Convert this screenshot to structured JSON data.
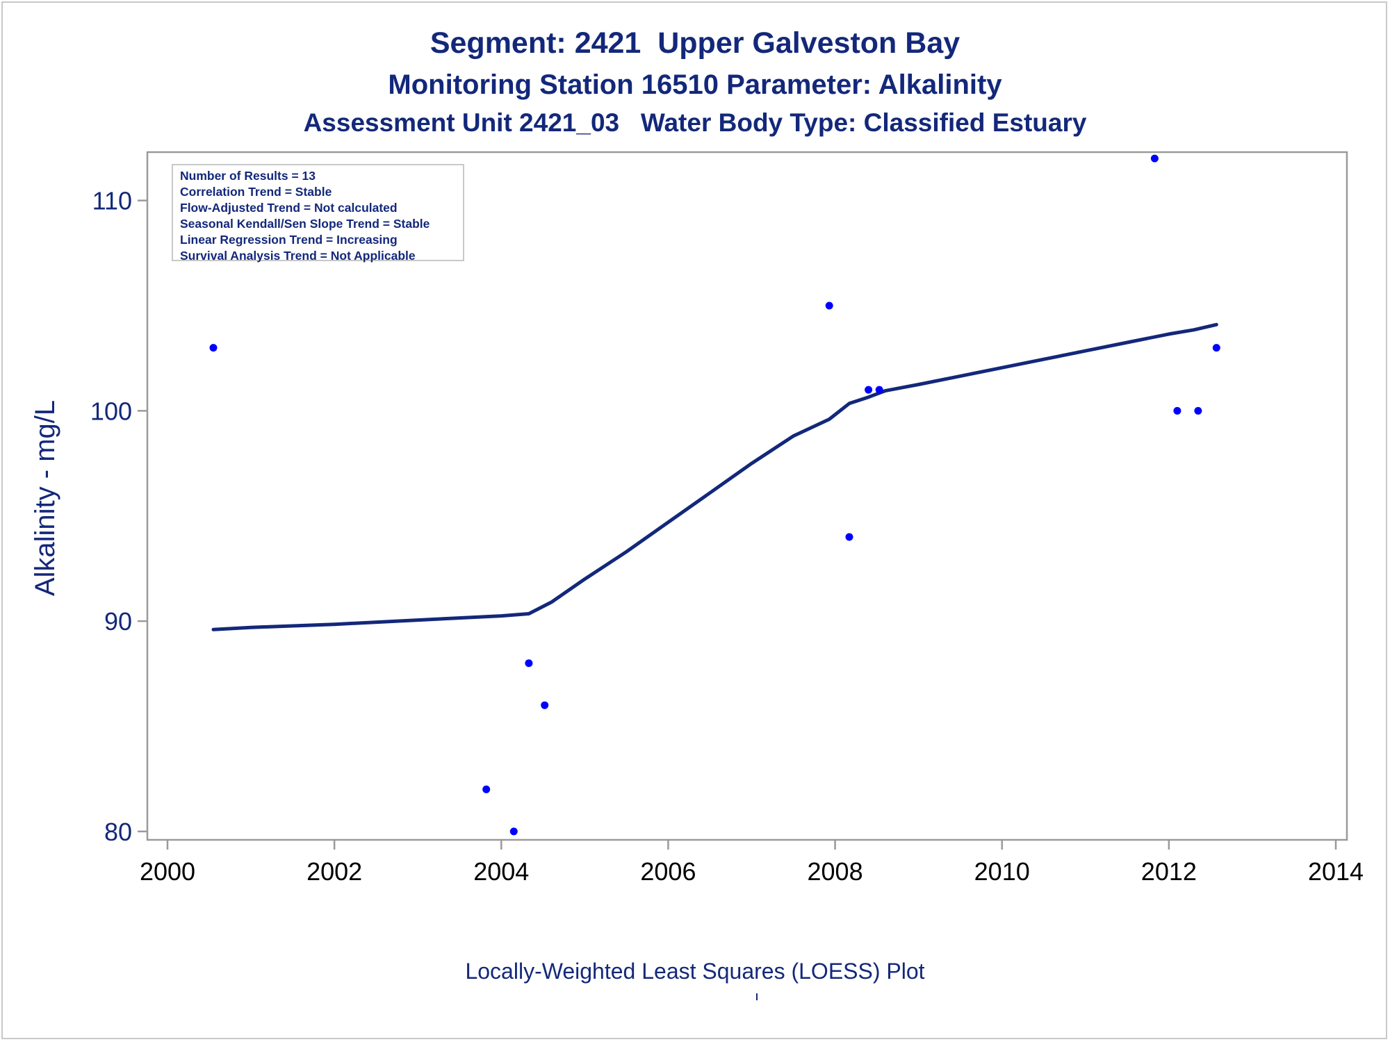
{
  "titles": {
    "line1": "Segment: 2421  Upper Galveston Bay",
    "line2": "Monitoring Station 16510 Parameter: Alkalinity",
    "line3": "Assessment Unit 2421_03   Water Body Type: Classified Estuary"
  },
  "footnote": "Locally-Weighted Least Squares (LOESS) Plot",
  "stats": {
    "number_of_results": "Number of Results = 13",
    "correlation_trend": "Correlation Trend = Stable",
    "flow_adjusted_trend": "Flow-Adjusted Trend = Not calculated",
    "seasonal_kendall_trend": "Seasonal Kendall/Sen Slope Trend = Stable",
    "linear_regression_trend": "Linear Regression Trend = Increasing",
    "survival_analysis_trend": "Survival Analysis Trend = Not Applicable"
  },
  "chart_data": {
    "type": "scatter",
    "title": "",
    "xlabel": "",
    "ylabel": "Alkalinity - mg/L",
    "xlim": [
      2000,
      2014
    ],
    "ylim": [
      79.6,
      112.3
    ],
    "xticks": [
      2000,
      2002,
      2004,
      2006,
      2008,
      2010,
      2012,
      2014
    ],
    "yticks": [
      80,
      90,
      100,
      110
    ],
    "grid": false,
    "colors": {
      "points": "#0000ff",
      "line": "#13287a",
      "text": "#13287a",
      "axis": "#9a9a9a"
    },
    "series": [
      {
        "kind": "points",
        "x": [
          2000.55,
          2003.82,
          2004.15,
          2004.33,
          2004.52,
          2007.93,
          2008.17,
          2008.4,
          2008.53,
          2011.83,
          2012.1,
          2012.35,
          2012.57
        ],
        "y": [
          103.0,
          82.0,
          80.0,
          88.0,
          86.0,
          105.0,
          94.0,
          101.0,
          101.0,
          112.0,
          100.0,
          100.0,
          103.0
        ]
      },
      {
        "kind": "line",
        "x": [
          2000.55,
          2001.0,
          2002.0,
          2003.0,
          2004.0,
          2004.33,
          2004.6,
          2005.0,
          2005.5,
          2006.0,
          2006.5,
          2007.0,
          2007.5,
          2007.93,
          2008.17,
          2008.4,
          2008.6,
          2009.0,
          2009.5,
          2010.0,
          2010.5,
          2011.0,
          2011.5,
          2012.0,
          2012.3,
          2012.57
        ],
        "y": [
          89.6,
          89.7,
          89.85,
          90.05,
          90.25,
          90.35,
          90.9,
          92.0,
          93.3,
          94.7,
          96.1,
          97.5,
          98.8,
          99.6,
          100.35,
          100.65,
          100.95,
          101.25,
          101.65,
          102.05,
          102.45,
          102.85,
          103.25,
          103.65,
          103.85,
          104.1
        ]
      }
    ]
  }
}
